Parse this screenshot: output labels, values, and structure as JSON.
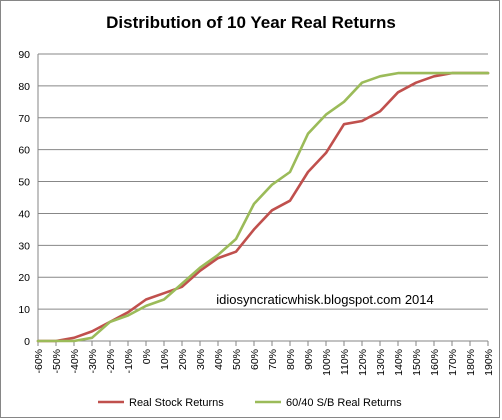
{
  "chart_data": {
    "type": "line",
    "title": "Distribution  of 10 Year Real Returns",
    "annotation": "idiosyncraticwhisk.blogspot.com  2014",
    "categories": [
      "-60%",
      "-50%",
      "-40%",
      "-30%",
      "-20%",
      "-10%",
      "0%",
      "10%",
      "20%",
      "30%",
      "40%",
      "50%",
      "60%",
      "70%",
      "80%",
      "90%",
      "100%",
      "110%",
      "120%",
      "130%",
      "140%",
      "150%",
      "160%",
      "170%",
      "180%",
      "190%"
    ],
    "ylim": [
      0,
      90
    ],
    "yticks": [
      0,
      10,
      20,
      30,
      40,
      50,
      60,
      70,
      80,
      90
    ],
    "grid": true,
    "legend_position": "bottom",
    "series": [
      {
        "name": "Real Stock Returns",
        "color": "#c0504d",
        "values": [
          0,
          0,
          1,
          3,
          6,
          9,
          13,
          15,
          17,
          22,
          26,
          28,
          35,
          41,
          44,
          53,
          59,
          68,
          69,
          72,
          78,
          81,
          83,
          84,
          84,
          84
        ]
      },
      {
        "name": "60/40 S/B Real Returns",
        "color": "#9bbb59",
        "values": [
          0,
          0,
          0,
          1,
          6,
          8,
          11,
          13,
          18,
          23,
          27,
          32,
          43,
          49,
          53,
          65,
          71,
          75,
          81,
          83,
          84,
          84,
          84,
          84,
          84,
          84
        ]
      }
    ]
  }
}
